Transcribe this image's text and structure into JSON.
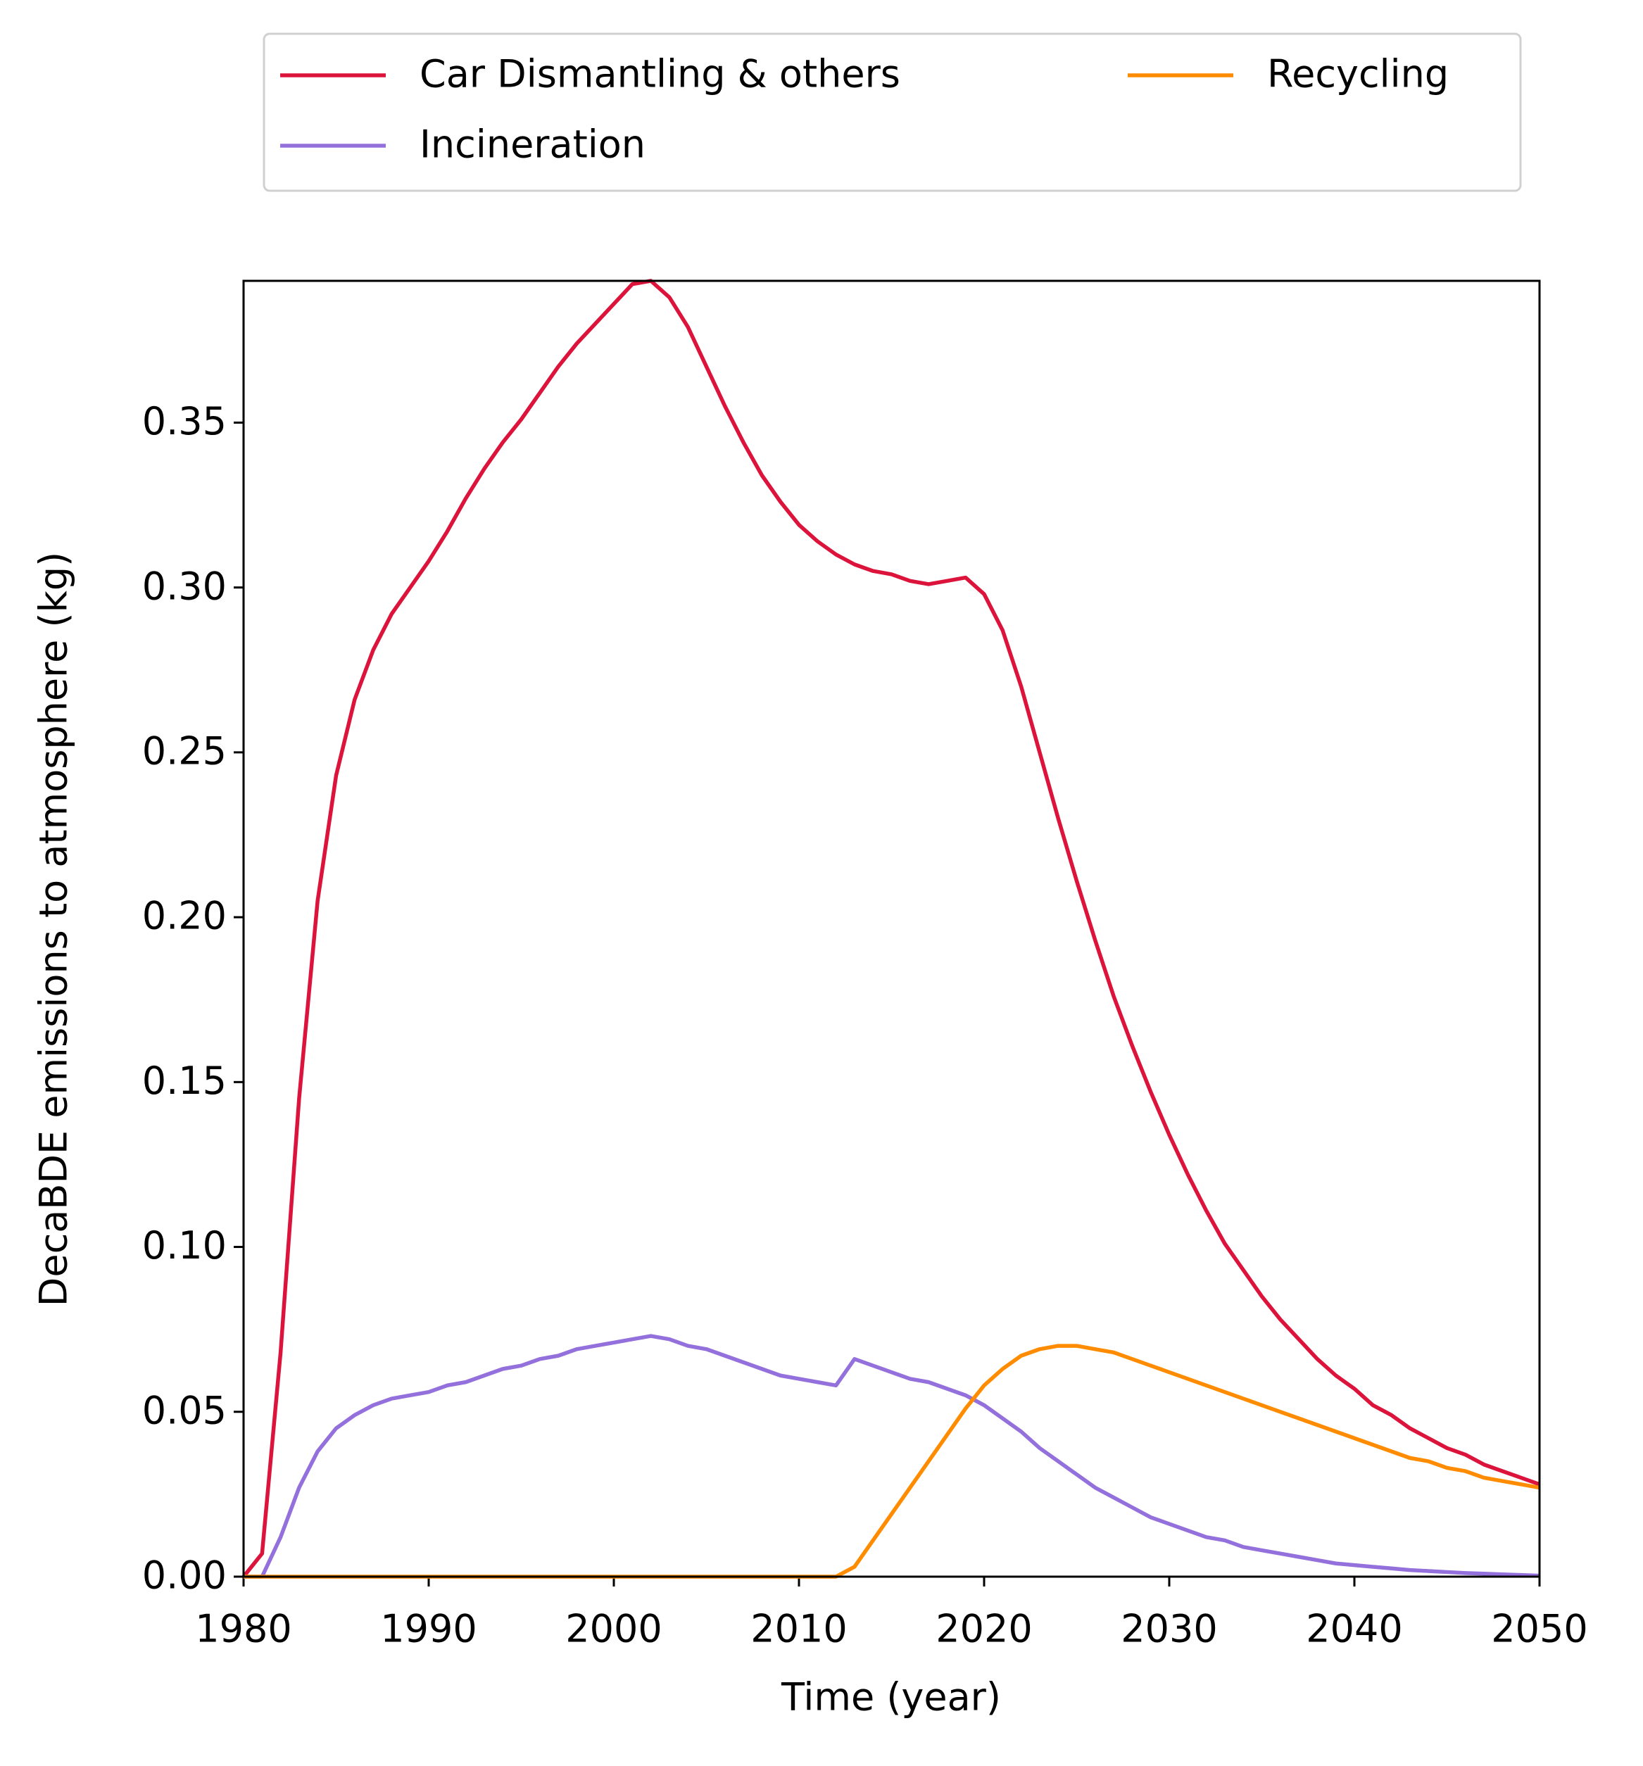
{
  "chart_data": {
    "type": "line",
    "x_label": "Time (year)",
    "y_label": "DecaBDE emissions to atmosphere (kg)",
    "x": [
      1980,
      1981,
      1982,
      1983,
      1984,
      1985,
      1986,
      1987,
      1988,
      1989,
      1990,
      1991,
      1992,
      1993,
      1994,
      1995,
      1996,
      1997,
      1998,
      1999,
      2000,
      2001,
      2002,
      2003,
      2004,
      2005,
      2006,
      2007,
      2008,
      2009,
      2010,
      2011,
      2012,
      2013,
      2014,
      2015,
      2016,
      2017,
      2018,
      2019,
      2020,
      2021,
      2022,
      2023,
      2024,
      2025,
      2026,
      2027,
      2028,
      2029,
      2030,
      2031,
      2032,
      2033,
      2034,
      2035,
      2036,
      2037,
      2038,
      2039,
      2040,
      2041,
      2042,
      2043,
      2044,
      2045,
      2046,
      2047,
      2048,
      2049,
      2050
    ],
    "series": [
      {
        "name": "Car Dismantling & others",
        "color": "#dc143c",
        "values": [
          0,
          0.007,
          0.068,
          0.145,
          0.205,
          0.243,
          0.266,
          0.281,
          0.292,
          0.3,
          0.308,
          0.317,
          0.327,
          0.336,
          0.344,
          0.351,
          0.359,
          0.367,
          0.374,
          0.38,
          0.386,
          0.392,
          0.393,
          0.388,
          0.379,
          0.367,
          0.355,
          0.344,
          0.334,
          0.326,
          0.319,
          0.314,
          0.31,
          0.307,
          0.305,
          0.304,
          0.302,
          0.301,
          0.302,
          0.303,
          0.298,
          0.287,
          0.27,
          0.25,
          0.23,
          0.211,
          0.193,
          0.176,
          0.161,
          0.147,
          0.134,
          0.122,
          0.111,
          0.101,
          0.093,
          0.085,
          0.078,
          0.072,
          0.066,
          0.061,
          0.057,
          0.052,
          0.049,
          0.045,
          0.042,
          0.039,
          0.037,
          0.034,
          0.032,
          0.03,
          0.028
        ]
      },
      {
        "name": "Incineration",
        "color": "#9370db",
        "values": [
          0,
          0,
          0.012,
          0.027,
          0.038,
          0.045,
          0.049,
          0.052,
          0.054,
          0.055,
          0.056,
          0.058,
          0.059,
          0.061,
          0.063,
          0.064,
          0.066,
          0.067,
          0.069,
          0.07,
          0.071,
          0.072,
          0.073,
          0.072,
          0.07,
          0.069,
          0.067,
          0.065,
          0.063,
          0.061,
          0.06,
          0.059,
          0.058,
          0.066,
          0.064,
          0.062,
          0.06,
          0.059,
          0.057,
          0.055,
          0.052,
          0.048,
          0.044,
          0.039,
          0.035,
          0.031,
          0.027,
          0.024,
          0.021,
          0.018,
          0.016,
          0.014,
          0.012,
          0.011,
          0.009,
          0.008,
          0.007,
          0.006,
          0.005,
          0.004,
          0.0035,
          0.003,
          0.0025,
          0.002,
          0.0017,
          0.0014,
          0.0011,
          0.0009,
          0.0007,
          0.0005,
          0.0003
        ]
      },
      {
        "name": "Recycling",
        "color": "#ff8c00",
        "values": [
          0,
          0,
          0,
          0,
          0,
          0,
          0,
          0,
          0,
          0,
          0,
          0,
          0,
          0,
          0,
          0,
          0,
          0,
          0,
          0,
          0,
          0,
          0,
          0,
          0,
          0,
          0,
          0,
          0,
          0,
          0,
          0,
          0,
          0.003,
          0.011,
          0.019,
          0.027,
          0.035,
          0.043,
          0.051,
          0.058,
          0.063,
          0.067,
          0.069,
          0.07,
          0.07,
          0.069,
          0.068,
          0.066,
          0.064,
          0.062,
          0.06,
          0.058,
          0.056,
          0.054,
          0.052,
          0.05,
          0.048,
          0.046,
          0.044,
          0.042,
          0.04,
          0.038,
          0.036,
          0.035,
          0.033,
          0.032,
          0.03,
          0.029,
          0.028,
          0.027
        ]
      }
    ],
    "xlim": [
      1980,
      2050
    ],
    "xticks": [
      1980,
      1990,
      2000,
      2010,
      2020,
      2030,
      2040,
      2050
    ],
    "ylim": [
      0,
      0.393
    ],
    "yticks": [
      {
        "value": 0,
        "label": "0.00"
      },
      {
        "value": 0.05,
        "label": "0.05"
      },
      {
        "value": 0.1,
        "label": "0.10"
      },
      {
        "value": 0.15,
        "label": "0.15"
      },
      {
        "value": 0.2,
        "label": "0.20"
      },
      {
        "value": 0.25,
        "label": "0.25"
      },
      {
        "value": 0.3,
        "label": "0.30"
      },
      {
        "value": 0.35,
        "label": "0.35"
      }
    ],
    "legend": "upper center outside"
  }
}
